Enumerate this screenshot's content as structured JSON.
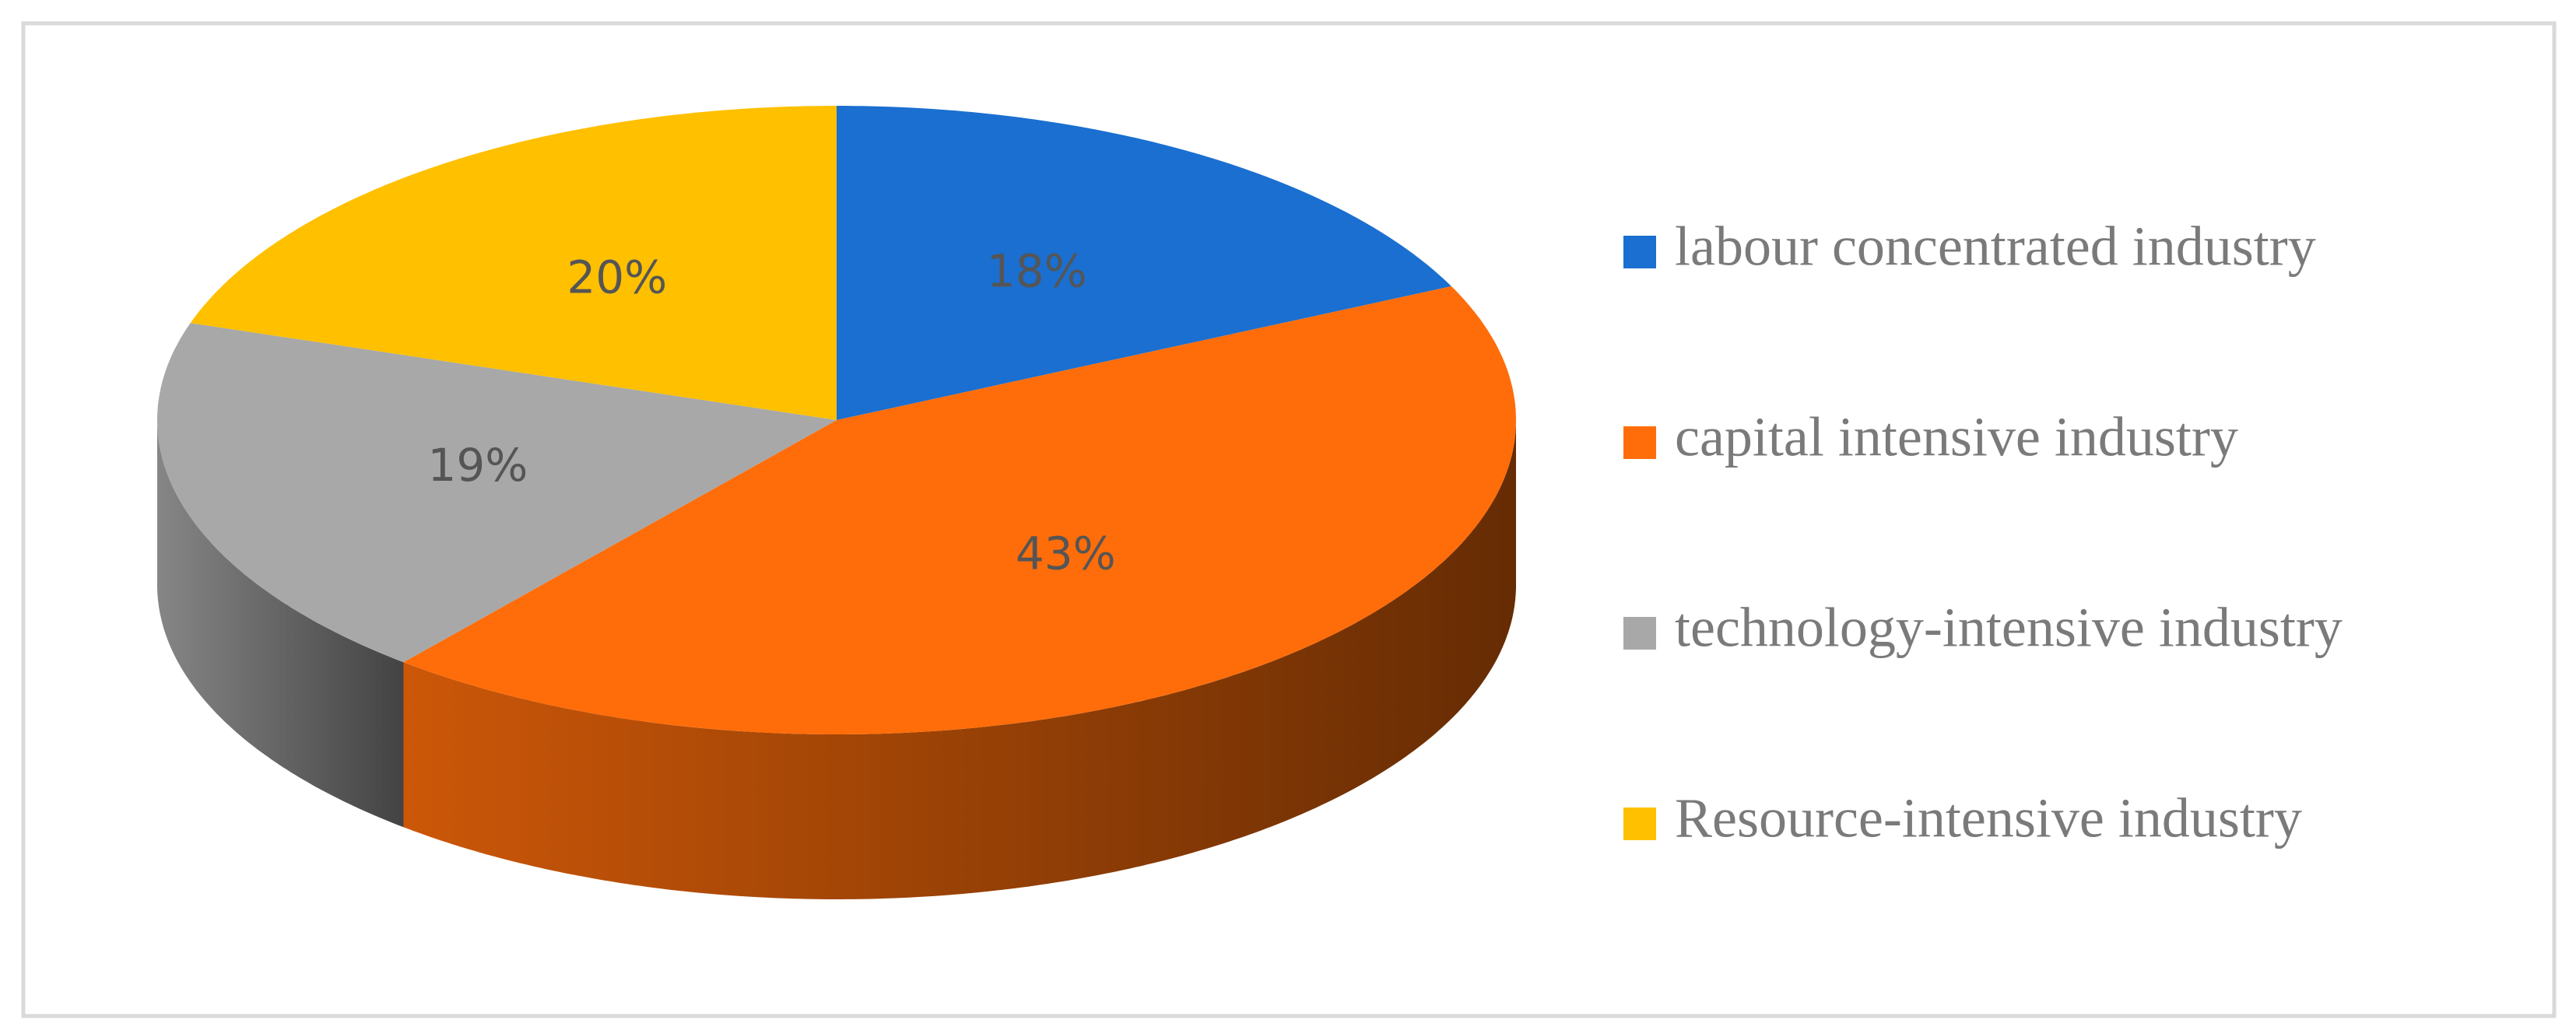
{
  "chart_data": {
    "type": "pie",
    "categories": [
      "labour concentrated industry",
      "capital intensive industry",
      "technology-intensive industry",
      "Resource-intensive industry"
    ],
    "values": [
      18,
      43,
      19,
      20
    ],
    "value_labels": [
      "18%",
      "43%",
      "19%",
      "20%"
    ],
    "colors": [
      "#1a6fd0",
      "#ff6d0a",
      "#a8a8a8",
      "#ffc000"
    ],
    "legend": "right"
  }
}
